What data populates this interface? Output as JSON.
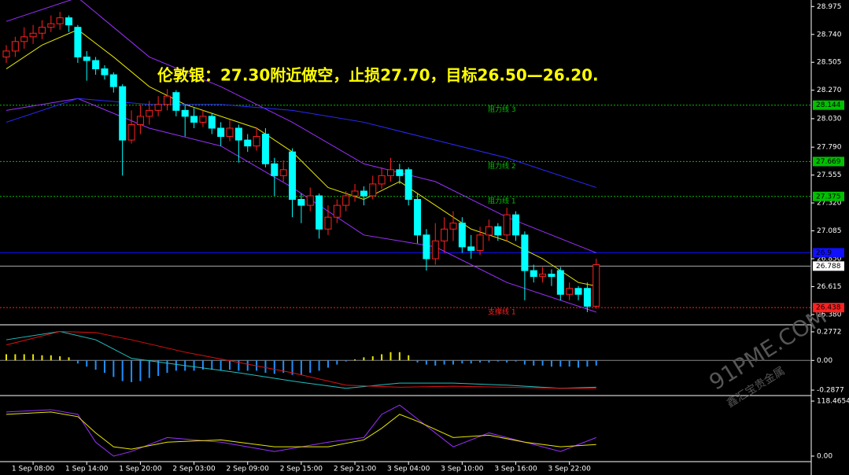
{
  "chart_data": {
    "type": "candlestick",
    "title": "伦敦银：27.30附近做空，止损27.70，目标26.50—26.20.",
    "categories": [
      null,
      null,
      null,
      "1 Sep 08:00",
      null,
      null,
      null,
      null,
      null,
      "1 Sep 14:00",
      null,
      null,
      null,
      null,
      null,
      "1 Sep 20:00",
      null,
      null,
      null,
      null,
      null,
      "2 Sep 03:00",
      null,
      null,
      null,
      null,
      null,
      "2 Sep 09:00",
      null,
      null,
      null,
      null,
      null,
      "2 Sep 15:00",
      null,
      null,
      null,
      null,
      null,
      "2 Sep 21:00",
      null,
      null,
      null,
      null,
      null,
      "3 Sep 04:00",
      null,
      null,
      null,
      null,
      null,
      "3 Sep 10:00",
      null,
      null,
      null,
      null,
      null,
      "3 Sep 16:00",
      null,
      null,
      null,
      null,
      null,
      "3 Sep 22:00",
      null,
      null,
      null
    ],
    "open": [
      28.55,
      28.6,
      28.68,
      28.72,
      28.75,
      28.8,
      28.83,
      28.88,
      28.8,
      28.55,
      28.52,
      28.45,
      28.4,
      28.3,
      27.85,
      27.98,
      28.05,
      28.1,
      28.15,
      28.25,
      28.1,
      28.05,
      28.0,
      28.05,
      27.95,
      27.88,
      27.95,
      27.85,
      27.8,
      27.9,
      27.65,
      27.55,
      27.75,
      27.35,
      27.3,
      27.38,
      27.1,
      27.2,
      27.3,
      27.38,
      27.42,
      27.38,
      27.48,
      27.55,
      27.6,
      27.6,
      27.35,
      27.05,
      26.85,
      27.0,
      27.1,
      27.15,
      26.95,
      26.92,
      27.05,
      27.12,
      27.05,
      27.22,
      27.05,
      26.75,
      26.7,
      26.72,
      26.75,
      26.55,
      26.6,
      26.6,
      26.45
    ],
    "high": [
      28.65,
      28.72,
      28.8,
      28.82,
      28.86,
      28.9,
      28.93,
      28.9,
      28.82,
      28.6,
      28.55,
      28.48,
      28.42,
      28.32,
      28.1,
      28.15,
      28.18,
      28.22,
      28.28,
      28.27,
      28.15,
      28.12,
      28.1,
      28.08,
      28.0,
      28.02,
      27.98,
      27.9,
      27.95,
      27.95,
      27.7,
      27.68,
      27.78,
      27.4,
      27.45,
      27.4,
      27.3,
      27.35,
      27.42,
      27.48,
      27.46,
      27.55,
      27.62,
      27.7,
      27.65,
      27.62,
      27.4,
      27.1,
      27.15,
      27.2,
      27.25,
      27.2,
      27.05,
      27.12,
      27.18,
      27.15,
      27.28,
      27.25,
      27.08,
      26.8,
      26.78,
      26.76,
      26.78,
      26.65,
      26.62,
      26.65,
      26.85
    ],
    "low": [
      28.5,
      28.55,
      28.62,
      28.66,
      28.7,
      28.76,
      28.78,
      28.76,
      28.5,
      28.35,
      28.4,
      28.36,
      28.25,
      27.55,
      27.82,
      27.9,
      27.98,
      28.05,
      28.1,
      28.05,
      27.88,
      27.95,
      27.96,
      27.9,
      27.8,
      27.84,
      27.66,
      27.75,
      27.76,
      27.62,
      27.38,
      27.5,
      27.2,
      27.15,
      27.25,
      27.02,
      27.05,
      27.15,
      27.25,
      27.33,
      27.3,
      27.35,
      27.44,
      27.5,
      27.48,
      27.3,
      26.98,
      26.75,
      26.8,
      26.9,
      27.0,
      26.9,
      26.85,
      26.88,
      27.0,
      27.0,
      27.0,
      27.0,
      26.5,
      26.65,
      26.65,
      26.62,
      26.5,
      26.5,
      26.5,
      26.4,
      26.43
    ],
    "close": [
      28.6,
      28.68,
      28.72,
      28.75,
      28.8,
      28.83,
      28.88,
      28.82,
      28.55,
      28.52,
      28.45,
      28.4,
      28.3,
      27.85,
      27.98,
      28.05,
      28.1,
      28.15,
      28.22,
      28.1,
      28.05,
      28.0,
      28.05,
      27.95,
      27.88,
      27.95,
      27.85,
      27.8,
      27.88,
      27.65,
      27.55,
      27.6,
      27.35,
      27.3,
      27.38,
      27.1,
      27.2,
      27.3,
      27.38,
      27.42,
      27.38,
      27.48,
      27.55,
      27.6,
      27.55,
      27.35,
      27.05,
      26.85,
      27.0,
      27.1,
      27.15,
      26.95,
      26.92,
      27.05,
      27.12,
      27.05,
      27.22,
      27.05,
      26.75,
      26.7,
      26.72,
      26.7,
      26.55,
      26.6,
      26.55,
      26.45,
      26.8
    ],
    "up_color": "#ff2020",
    "down_color": "#00ffff",
    "ylim": [
      26.3,
      29.03
    ],
    "yticks": [
      28.975,
      {
        "value": 28.74,
        "label": "28.740"
      },
      28.505,
      {
        "value": 28.27,
        "label": "28.270"
      },
      {
        "value": 28.03,
        "label": "28.030"
      },
      {
        "value": 27.79,
        "label": "27.790"
      },
      27.555,
      {
        "value": 27.32,
        "label": "27.320"
      },
      27.085,
      {
        "value": 26.85,
        "label": "26.850"
      },
      26.615,
      {
        "value": 26.38,
        "label": "26.380"
      }
    ],
    "lines": [
      {
        "color": "#e6e600",
        "x": [
          0,
          4,
          8,
          12,
          16,
          20,
          24,
          28,
          32,
          36,
          40,
          44,
          48,
          52,
          56,
          60,
          64,
          66
        ],
        "values": [
          28.45,
          28.65,
          28.78,
          28.55,
          28.3,
          28.15,
          28.05,
          27.95,
          27.75,
          27.45,
          27.35,
          27.5,
          27.3,
          27.1,
          27.0,
          26.85,
          26.65,
          26.62
        ]
      },
      {
        "color": "#9b30ff",
        "x": [
          0,
          8,
          16,
          24,
          32,
          40,
          48,
          56,
          66
        ],
        "values": [
          28.85,
          29.05,
          28.55,
          28.3,
          28.0,
          27.65,
          27.5,
          27.2,
          26.9
        ]
      },
      {
        "color": "#9b30ff",
        "x": [
          0,
          8,
          16,
          24,
          32,
          40,
          48,
          56,
          66
        ],
        "values": [
          28.1,
          28.2,
          27.95,
          27.8,
          27.45,
          27.05,
          26.95,
          26.65,
          26.4
        ]
      },
      {
        "color": "#2a2aff",
        "x": [
          0,
          8,
          16,
          24,
          32,
          40,
          48,
          56,
          66
        ],
        "values": [
          28.0,
          28.2,
          28.15,
          28.15,
          28.1,
          28.0,
          27.85,
          27.7,
          27.45
        ]
      }
    ],
    "levels": [
      {
        "label": "阻力线 3",
        "value": 28.144,
        "color": "#00c000"
      },
      {
        "label": "阻力线 2",
        "value": 27.669,
        "color": "#00c000"
      },
      {
        "label": "阻力线 1",
        "value": 27.375,
        "color": "#00c000"
      },
      {
        "label": "支撑线 1",
        "value": 26.438,
        "color": "#ff2020"
      }
    ],
    "blue_level": {
      "value": 26.9,
      "color": "#1010ff"
    },
    "current_price": 26.788,
    "macd": {
      "ylim": [
        -0.333,
        0.33
      ],
      "yticks": [
        0.2772,
        {
          "value": 0,
          "label": "0.00"
        },
        -0.2877
      ],
      "hist_up_color": "#e6e600",
      "hist_down_color": "#1e90ff",
      "hist": [
        0.06,
        0.06,
        0.06,
        0.06,
        0.05,
        0.05,
        0.04,
        0.03,
        -0.03,
        -0.06,
        -0.09,
        -0.12,
        -0.16,
        -0.2,
        -0.21,
        -0.2,
        -0.17,
        -0.15,
        -0.12,
        -0.1,
        -0.1,
        -0.1,
        -0.09,
        -0.09,
        -0.1,
        -0.09,
        -0.1,
        -0.1,
        -0.1,
        -0.12,
        -0.13,
        -0.12,
        -0.14,
        -0.14,
        -0.12,
        -0.1,
        -0.07,
        -0.04,
        -0.01,
        0.01,
        0.03,
        0.04,
        0.06,
        0.08,
        0.08,
        0.05,
        -0.02,
        -0.04,
        -0.05,
        -0.04,
        -0.04,
        -0.03,
        -0.03,
        -0.02,
        -0.02,
        -0.01,
        -0.02,
        -0.01,
        -0.04,
        -0.05,
        -0.05,
        -0.06,
        -0.06,
        -0.06,
        -0.07,
        -0.06,
        -0.05
      ],
      "lines": [
        {
          "color": "#20c0c0",
          "x": [
            0,
            6,
            10,
            14,
            20,
            26,
            32,
            38,
            44,
            50,
            56,
            62,
            66
          ],
          "values": [
            0.2,
            0.28,
            0.2,
            0.02,
            -0.05,
            -0.12,
            -0.2,
            -0.27,
            -0.22,
            -0.22,
            -0.24,
            -0.27,
            -0.26
          ]
        },
        {
          "color": "#e01010",
          "x": [
            0,
            6,
            10,
            14,
            20,
            26,
            32,
            38,
            44,
            50,
            56,
            62,
            66
          ],
          "values": [
            0.15,
            0.28,
            0.27,
            0.2,
            0.08,
            -0.02,
            -0.12,
            -0.24,
            -0.26,
            -0.25,
            -0.26,
            -0.27,
            -0.27
          ]
        }
      ]
    },
    "osc": {
      "ylim": [
        -8.5,
        127
      ],
      "yticks": [
        118.4654,
        {
          "value": 0,
          "label": "0.00"
        }
      ],
      "lines": [
        {
          "color": "#9b30ff",
          "x": [
            0,
            5,
            8,
            10,
            12,
            14,
            18,
            24,
            30,
            36,
            40,
            42,
            44,
            46,
            50,
            54,
            58,
            62,
            66
          ],
          "values": [
            95,
            100,
            90,
            30,
            0,
            10,
            40,
            30,
            10,
            30,
            40,
            90,
            110,
            80,
            20,
            50,
            30,
            10,
            40
          ]
        },
        {
          "color": "#e6e600",
          "x": [
            0,
            5,
            8,
            10,
            12,
            14,
            18,
            24,
            30,
            36,
            40,
            42,
            44,
            46,
            50,
            54,
            58,
            62,
            66
          ],
          "values": [
            90,
            95,
            85,
            50,
            20,
            15,
            30,
            35,
            20,
            20,
            35,
            60,
            90,
            75,
            40,
            45,
            30,
            20,
            25
          ]
        }
      ]
    },
    "watermark": {
      "brand": "91PME.COM",
      "name": "鑫汇宝贵金属"
    }
  }
}
